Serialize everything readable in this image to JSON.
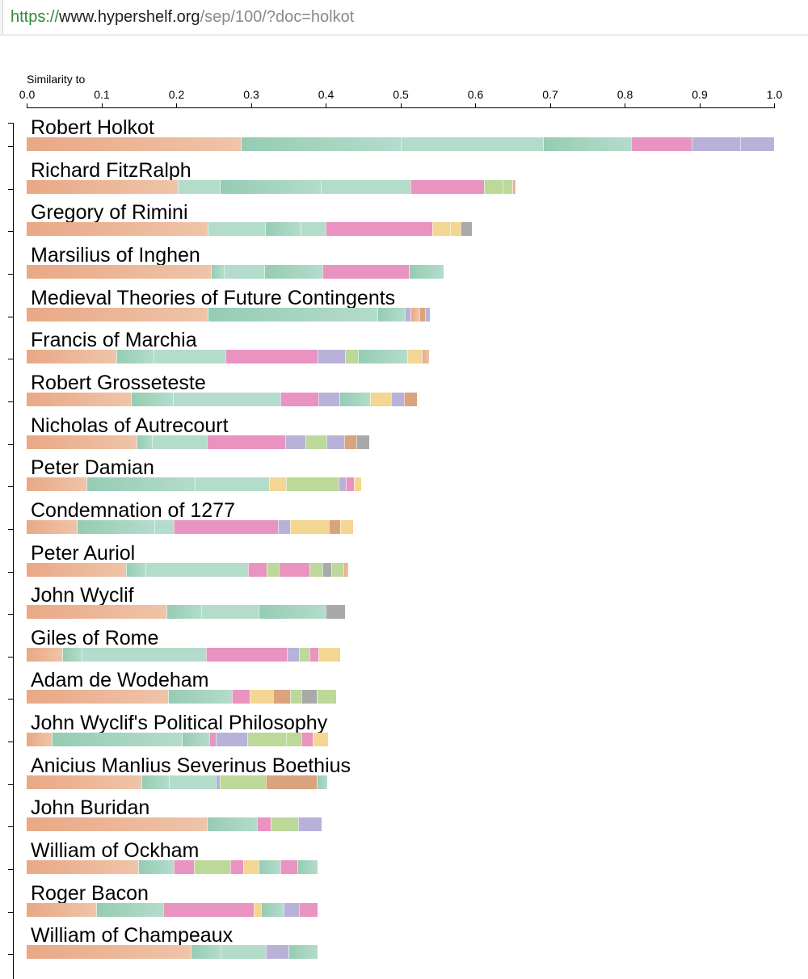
{
  "browser": {
    "url_scheme": "https://",
    "url_host": "www.hypershelf.org",
    "url_path": "/sep/100/?doc=holkot"
  },
  "chart_data": {
    "type": "bar",
    "orientation": "horizontal",
    "stacked": true,
    "xlabel": "Similarity to",
    "xlim": [
      0,
      1
    ],
    "x_ticks": [
      "0.0",
      "0.1",
      "0.2",
      "0.3",
      "0.4",
      "0.5",
      "0.6",
      "0.7",
      "0.8",
      "0.9",
      "1.0"
    ],
    "grid": false,
    "colors": {
      "orange": "#e9a886",
      "orange_light": "#efc4a8",
      "teal": "#96ccb3",
      "teal_light": "#b3dccb",
      "pink": "#e993c0",
      "lavender": "#b8b2d9",
      "green": "#bcd99a",
      "yellow": "#f3d691",
      "gray": "#a9a9a9",
      "brown": "#d9a37e"
    },
    "categories": [
      "Robert Holkot",
      "Richard FitzRalph",
      "Gregory of Rimini",
      "Marsilius of Inghen",
      "Medieval Theories of Future Contingents",
      "Francis of Marchia",
      "Robert Grosseteste",
      "Nicholas of Autrecourt",
      "Peter Damian",
      "Condemnation of 1277",
      "Peter Auriol",
      "John Wyclif",
      "Giles of Rome",
      "Adam de Wodeham",
      "John Wyclif's Political Philosophy",
      "Anicius Manlius Severinus Boethius",
      "John Buridan",
      "William of Ockham",
      "Roger Bacon",
      "William of Champeaux"
    ],
    "values": [
      1.0,
      0.654,
      0.596,
      0.558,
      0.539,
      0.538,
      0.522,
      0.458,
      0.448,
      0.437,
      0.43,
      0.426,
      0.42,
      0.414,
      0.403,
      0.402,
      0.395,
      0.389,
      0.389,
      0.389
    ],
    "segments": [
      [
        [
          "orange",
          0.287
        ],
        [
          "teal",
          0.214
        ],
        [
          "teal_light",
          0.19
        ],
        [
          "teal",
          0.118
        ],
        [
          "pink",
          0.081
        ],
        [
          "lavender",
          0.065
        ],
        [
          "lavender",
          0.045
        ]
      ],
      [
        [
          "orange",
          0.202
        ],
        [
          "teal_light",
          0.056
        ],
        [
          "teal",
          0.136
        ],
        [
          "teal_light",
          0.119
        ],
        [
          "pink",
          0.099
        ],
        [
          "green",
          0.025
        ],
        [
          "green",
          0.013
        ],
        [
          "orange",
          0.004
        ]
      ],
      [
        [
          "orange",
          0.242
        ],
        [
          "teal_light",
          0.077
        ],
        [
          "teal",
          0.047
        ],
        [
          "teal_light",
          0.034
        ],
        [
          "pink",
          0.143
        ],
        [
          "yellow",
          0.024
        ],
        [
          "yellow",
          0.014
        ],
        [
          "gray",
          0.015
        ]
      ],
      [
        [
          "orange",
          0.247
        ],
        [
          "teal",
          0.017
        ],
        [
          "teal_light",
          0.054
        ],
        [
          "teal",
          0.078
        ],
        [
          "pink",
          0.115
        ],
        [
          "teal",
          0.047
        ]
      ],
      [
        [
          "orange",
          0.242
        ],
        [
          "teal",
          0.227
        ],
        [
          "teal",
          0.037
        ],
        [
          "lavender",
          0.007
        ],
        [
          "orange",
          0.012
        ],
        [
          "brown",
          0.008
        ],
        [
          "lavender",
          0.006
        ]
      ],
      [
        [
          "orange",
          0.112
        ],
        [
          "teal",
          0.046
        ],
        [
          "teal_light",
          0.089
        ],
        [
          "pink",
          0.115
        ],
        [
          "lavender",
          0.034
        ],
        [
          "green",
          0.016
        ],
        [
          "teal",
          0.061
        ],
        [
          "yellow",
          0.018
        ],
        [
          "orange",
          0.009
        ]
      ],
      [
        [
          "orange",
          0.124
        ],
        [
          "teal",
          0.05
        ],
        [
          "teal_light",
          0.128
        ],
        [
          "pink",
          0.045
        ],
        [
          "lavender",
          0.025
        ],
        [
          "teal",
          0.036
        ],
        [
          "yellow",
          0.025
        ],
        [
          "lavender",
          0.016
        ],
        [
          "brown",
          0.015
        ]
      ],
      [
        [
          "orange",
          0.147
        ],
        [
          "teal",
          0.021
        ],
        [
          "teal_light",
          0.073
        ],
        [
          "pink",
          0.105
        ],
        [
          "lavender",
          0.027
        ],
        [
          "green",
          0.028
        ],
        [
          "lavender",
          0.024
        ],
        [
          "brown",
          0.016
        ],
        [
          "gray",
          0.017
        ]
      ],
      [
        [
          "orange",
          0.08
        ],
        [
          "teal",
          0.145
        ],
        [
          "teal_light",
          0.099
        ],
        [
          "yellow",
          0.023
        ],
        [
          "green",
          0.07
        ],
        [
          "lavender",
          0.01
        ],
        [
          "pink",
          0.011
        ],
        [
          "yellow",
          0.01
        ]
      ],
      [
        [
          "orange",
          0.067
        ],
        [
          "teal",
          0.104
        ],
        [
          "teal_light",
          0.026
        ],
        [
          "pink",
          0.139
        ],
        [
          "lavender",
          0.016
        ],
        [
          "yellow",
          0.052
        ],
        [
          "brown",
          0.015
        ],
        [
          "yellow",
          0.018
        ]
      ],
      [
        [
          "orange",
          0.133
        ],
        [
          "teal",
          0.026
        ],
        [
          "teal_light",
          0.137
        ],
        [
          "pink",
          0.025
        ],
        [
          "green",
          0.016
        ],
        [
          "pink",
          0.041
        ],
        [
          "green",
          0.018
        ],
        [
          "gray",
          0.012
        ],
        [
          "green",
          0.016
        ],
        [
          "orange",
          0.006
        ]
      ],
      [
        [
          "orange",
          0.187
        ],
        [
          "teal",
          0.047
        ],
        [
          "teal_light",
          0.076
        ],
        [
          "teal",
          0.09
        ],
        [
          "gray",
          0.026
        ]
      ],
      [
        [
          "orange",
          0.048
        ],
        [
          "teal",
          0.026
        ],
        [
          "teal_light",
          0.166
        ],
        [
          "pink",
          0.108
        ],
        [
          "lavender",
          0.016
        ],
        [
          "green",
          0.014
        ],
        [
          "pink",
          0.012
        ],
        [
          "yellow",
          0.03
        ]
      ],
      [
        [
          "orange",
          0.189
        ],
        [
          "teal",
          0.086
        ],
        [
          "pink",
          0.023
        ],
        [
          "yellow",
          0.032
        ],
        [
          "brown",
          0.023
        ],
        [
          "green",
          0.015
        ],
        [
          "gray",
          0.02
        ],
        [
          "green",
          0.026
        ]
      ],
      [
        [
          "orange",
          0.033
        ],
        [
          "teal",
          0.175
        ],
        [
          "teal",
          0.036
        ],
        [
          "pink",
          0.009
        ],
        [
          "lavender",
          0.042
        ],
        [
          "green",
          0.052
        ],
        [
          "green",
          0.021
        ],
        [
          "pink",
          0.015
        ],
        [
          "yellow",
          0.02
        ]
      ],
      [
        [
          "orange",
          0.153
        ],
        [
          "teal",
          0.037
        ],
        [
          "teal_light",
          0.063
        ],
        [
          "lavender",
          0.005
        ],
        [
          "green",
          0.062
        ],
        [
          "brown",
          0.068
        ],
        [
          "teal",
          0.014
        ]
      ],
      [
        [
          "orange",
          0.241
        ],
        [
          "teal",
          0.067
        ],
        [
          "pink",
          0.018
        ],
        [
          "green",
          0.037
        ],
        [
          "lavender",
          0.032
        ]
      ],
      [
        [
          "orange",
          0.149
        ],
        [
          "teal",
          0.048
        ],
        [
          "pink",
          0.027
        ],
        [
          "green",
          0.048
        ],
        [
          "pink",
          0.018
        ],
        [
          "yellow",
          0.02
        ],
        [
          "teal",
          0.03
        ],
        [
          "pink",
          0.022
        ],
        [
          "teal",
          0.027
        ]
      ],
      [
        [
          "orange",
          0.093
        ],
        [
          "teal",
          0.09
        ],
        [
          "pink",
          0.121
        ],
        [
          "yellow",
          0.01
        ],
        [
          "teal",
          0.03
        ],
        [
          "lavender",
          0.02
        ],
        [
          "pink",
          0.025
        ]
      ],
      [
        [
          "orange",
          0.22
        ],
        [
          "teal",
          0.04
        ],
        [
          "teal_light",
          0.06
        ],
        [
          "lavender",
          0.03
        ],
        [
          "teal",
          0.039
        ]
      ]
    ]
  }
}
